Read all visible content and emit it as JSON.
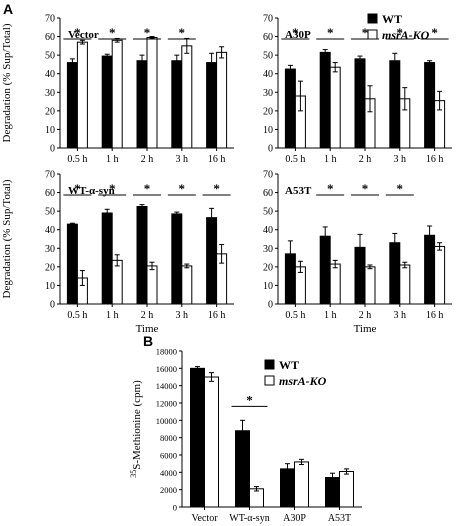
{
  "panel_labels": {
    "A": "A",
    "B": "B"
  },
  "legend_a": {
    "wt": "WT",
    "ko": "msrA-KO"
  },
  "legend_b": {
    "wt": "WT",
    "ko": "msrA-KO"
  },
  "colors": {
    "wt": "#000000",
    "ko": "#ffffff",
    "stroke": "#000000"
  },
  "chart_data": [
    {
      "type": "bar",
      "title": "Vector",
      "categories": [
        "0.5 h",
        "1 h",
        "2 h",
        "3 h",
        "16 h"
      ],
      "series": [
        {
          "name": "WT",
          "values": [
            46,
            49.5,
            47,
            47,
            46
          ],
          "errors": [
            2,
            1,
            3,
            3,
            5
          ]
        },
        {
          "name": "msrA-KO",
          "values": [
            57,
            58,
            59.5,
            55,
            51.5
          ],
          "errors": [
            1,
            1,
            0.5,
            4,
            3
          ]
        }
      ],
      "significance": [
        "*",
        "*",
        "*",
        "*",
        ""
      ],
      "ylabel": "Degradation (% Sup/Total)",
      "xlabel": "",
      "ylim": [
        0,
        70
      ],
      "yticks": [
        0,
        10,
        20,
        30,
        40,
        50,
        60,
        70
      ]
    },
    {
      "type": "bar",
      "title": "A30P",
      "categories": [
        "0.5 h",
        "1 h",
        "2 h",
        "3 h",
        "16 h"
      ],
      "series": [
        {
          "name": "WT",
          "values": [
            42.5,
            51.5,
            48,
            47,
            46
          ],
          "errors": [
            2,
            1.5,
            1.5,
            4,
            1
          ]
        },
        {
          "name": "msrA-KO",
          "values": [
            28,
            43.5,
            26.5,
            26.5,
            25.5
          ],
          "errors": [
            8,
            2.5,
            7,
            6,
            5
          ]
        }
      ],
      "significance": [
        "*",
        "*",
        "*",
        "*",
        "*"
      ],
      "ylabel": "",
      "xlabel": "",
      "ylim": [
        0,
        70
      ],
      "yticks": [
        0,
        10,
        20,
        30,
        40,
        50,
        60,
        70
      ]
    },
    {
      "type": "bar",
      "title": "WT-α-syn",
      "categories": [
        "0.5 h",
        "1 h",
        "2 h",
        "3 h",
        "16 h"
      ],
      "series": [
        {
          "name": "WT",
          "values": [
            43,
            49,
            52.5,
            48.5,
            46.5
          ],
          "errors": [
            0.5,
            2,
            1,
            1,
            5
          ]
        },
        {
          "name": "msrA-KO",
          "values": [
            14,
            23.5,
            20.5,
            20.5,
            27
          ],
          "errors": [
            4,
            3,
            2,
            1,
            5
          ]
        }
      ],
      "significance": [
        "*",
        "*",
        "*",
        "*",
        "*"
      ],
      "ylabel": "Degradation (% Sup/Total)",
      "xlabel": "Time",
      "ylim": [
        0,
        70
      ],
      "yticks": [
        0,
        10,
        20,
        30,
        40,
        50,
        60,
        70
      ]
    },
    {
      "type": "bar",
      "title": "A53T",
      "categories": [
        "0.5 h",
        "1 h",
        "2 h",
        "3 h",
        "16 h"
      ],
      "series": [
        {
          "name": "WT",
          "values": [
            27,
            36.5,
            30.5,
            33,
            37
          ],
          "errors": [
            7,
            5,
            7,
            5,
            5
          ]
        },
        {
          "name": "msrA-KO",
          "values": [
            20,
            21.5,
            20,
            21,
            31
          ],
          "errors": [
            3,
            2,
            1,
            1.5,
            2
          ]
        }
      ],
      "significance": [
        "",
        "*",
        "*",
        "*",
        ""
      ],
      "ylabel": "",
      "xlabel": "Time",
      "ylim": [
        0,
        70
      ],
      "yticks": [
        0,
        10,
        20,
        30,
        40,
        50,
        60,
        70
      ]
    },
    {
      "type": "bar",
      "title": "",
      "categories": [
        "Vector",
        "WT-α-syn",
        "A30P",
        "A53T"
      ],
      "series": [
        {
          "name": "WT",
          "values": [
            16000,
            8800,
            4400,
            3400
          ],
          "errors": [
            200,
            1200,
            600,
            500
          ]
        },
        {
          "name": "msrA-KO",
          "values": [
            15000,
            2100,
            5200,
            4100
          ],
          "errors": [
            500,
            250,
            300,
            300
          ]
        }
      ],
      "significance": [
        "",
        "*",
        "",
        ""
      ],
      "ylabel_prefix": "35",
      "ylabel": "S-Methionine (cpm)",
      "xlabel": "",
      "ylim": [
        0,
        18000
      ],
      "yticks": [
        0,
        2000,
        4000,
        6000,
        8000,
        10000,
        12000,
        14000,
        16000,
        18000
      ]
    }
  ]
}
